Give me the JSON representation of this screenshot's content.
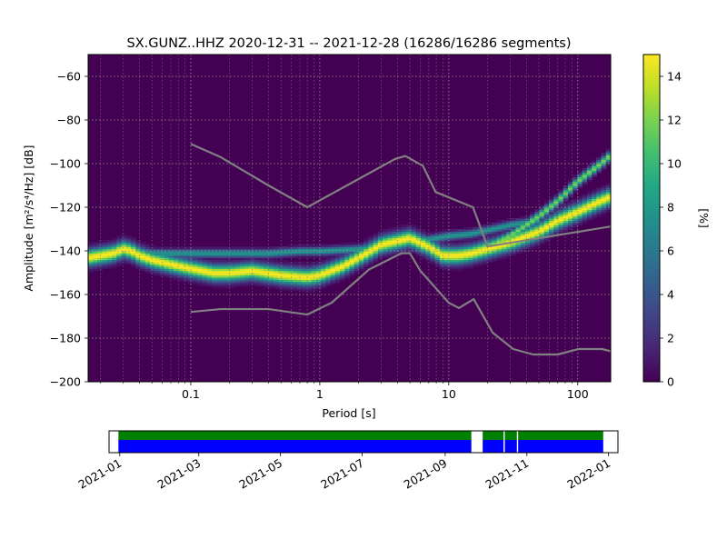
{
  "chart_data": [
    {
      "type": "heatmap",
      "title": "SX.GUNZ..HHZ   2020-12-31 -- 2021-12-28  (16286/16286 segments)",
      "xlabel": "Period [s]",
      "ylabel": "Amplitude [m²/s⁴/Hz] [dB]",
      "xscale": "log",
      "xlim": [
        0.016,
        180
      ],
      "ylim": [
        -200,
        -50
      ],
      "x_ticks": [
        0.1,
        1,
        10,
        100
      ],
      "x_tick_labels": [
        "0.1",
        "1",
        "10",
        "100"
      ],
      "y_ticks": [
        -200,
        -180,
        -160,
        -140,
        -120,
        -100,
        -80,
        -60
      ],
      "y_tick_labels": [
        "−200",
        "−180",
        "−160",
        "−140",
        "−120",
        "−100",
        "−80",
        "−60"
      ],
      "grid": true,
      "colormap": "viridis",
      "colorbar": {
        "label": "[%]",
        "range": [
          0,
          15
        ],
        "ticks": [
          0,
          2,
          4,
          6,
          8,
          10,
          12,
          14
        ],
        "tick_labels": [
          "0",
          "2",
          "4",
          "6",
          "8",
          "10",
          "12",
          "14"
        ]
      },
      "density_ridges": [
        {
          "points": [
            [
              0.016,
              -143
            ],
            [
              0.02,
              -142
            ],
            [
              0.025,
              -141
            ],
            [
              0.03,
              -139
            ],
            [
              0.035,
              -140
            ],
            [
              0.04,
              -142
            ],
            [
              0.05,
              -144
            ],
            [
              0.07,
              -146
            ],
            [
              0.1,
              -148
            ],
            [
              0.15,
              -150
            ],
            [
              0.2,
              -150
            ],
            [
              0.3,
              -149
            ],
            [
              0.5,
              -151
            ],
            [
              0.8,
              -152
            ],
            [
              1.0,
              -151
            ],
            [
              1.5,
              -147
            ],
            [
              2.0,
              -143
            ],
            [
              3.0,
              -137
            ],
            [
              5.0,
              -134
            ],
            [
              7.0,
              -138
            ],
            [
              9.0,
              -142
            ],
            [
              12.0,
              -142
            ],
            [
              15.0,
              -141
            ],
            [
              20.0,
              -139
            ],
            [
              30.0,
              -136
            ],
            [
              50.0,
              -131
            ],
            [
              70.0,
              -126
            ],
            [
              100.0,
              -122
            ],
            [
              150.0,
              -117
            ],
            [
              180.0,
              -115
            ]
          ],
          "spread_db": 2.5,
          "peak_percent": 15
        },
        {
          "points": [
            [
              0.03,
              -140
            ],
            [
              0.05,
              -141
            ],
            [
              0.1,
              -141
            ],
            [
              0.2,
              -141
            ],
            [
              0.4,
              -141
            ],
            [
              0.7,
              -140
            ],
            [
              1.0,
              -140
            ],
            [
              2.0,
              -139
            ],
            [
              5.0,
              -136
            ],
            [
              10.0,
              -133
            ],
            [
              15.0,
              -132
            ],
            [
              30.0,
              -128
            ],
            [
              50.0,
              -126
            ]
          ],
          "spread_db": 1.2,
          "peak_percent": 8
        },
        {
          "points": [
            [
              20.0,
              -138
            ],
            [
              30.0,
              -133
            ],
            [
              50.0,
              -124
            ],
            [
              70.0,
              -117
            ],
            [
              100.0,
              -108
            ],
            [
              150.0,
              -100
            ],
            [
              180.0,
              -96
            ]
          ],
          "spread_db": 1.5,
          "peak_percent": 12
        }
      ],
      "reference_curves": [
        {
          "points": [
            [
              0.1,
              -91
            ],
            [
              0.17,
              -97
            ],
            [
              0.4,
              -110
            ],
            [
              0.8,
              -120
            ],
            [
              3.8,
              -98
            ],
            [
              4.6,
              -96.5
            ],
            [
              6.3,
              -101
            ],
            [
              7.9,
              -113
            ],
            [
              15.4,
              -120
            ],
            [
              20.0,
              -138
            ],
            [
              354.8,
              -126
            ]
          ]
        },
        {
          "points": [
            [
              0.1,
              -168
            ],
            [
              0.17,
              -166.7
            ],
            [
              0.4,
              -166.7
            ],
            [
              0.8,
              -169.2
            ],
            [
              1.24,
              -163.7
            ],
            [
              2.4,
              -148.6
            ],
            [
              4.3,
              -141.1
            ],
            [
              5.0,
              -141.1
            ],
            [
              6.0,
              -149.0
            ],
            [
              10.0,
              -163.8
            ],
            [
              12.0,
              -166.2
            ],
            [
              15.6,
              -162.1
            ],
            [
              21.9,
              -177.5
            ],
            [
              31.6,
              -185.0
            ],
            [
              45.0,
              -187.5
            ],
            [
              70.0,
              -187.5
            ],
            [
              101.0,
              -185.0
            ],
            [
              154.0,
              -185.0
            ],
            [
              180.0,
              -186.0
            ]
          ]
        }
      ]
    },
    {
      "type": "timeline",
      "x_tick_labels": [
        "2021-01",
        "2021-03",
        "2021-05",
        "2021-07",
        "2021-09",
        "2021-11",
        "2022-01"
      ],
      "x_ticks": [
        "2021-01-01",
        "2021-03-01",
        "2021-05-01",
        "2021-07-01",
        "2021-09-01",
        "2021-11-01",
        "2022-01-01"
      ],
      "xlim": [
        "2020-12-24",
        "2022-01-08"
      ],
      "green_intervals": [
        [
          "2020-12-31",
          "2021-09-21"
        ],
        [
          "2021-09-29",
          "2021-12-28"
        ]
      ],
      "blue_intervals": [
        [
          "2020-12-31",
          "2021-09-21"
        ],
        [
          "2021-09-29",
          "2021-10-15"
        ],
        [
          "2021-10-15",
          "2021-10-25"
        ],
        [
          "2021-10-25",
          "2021-12-28"
        ]
      ],
      "gaps": [
        "2021-09-21",
        "2021-10-15",
        "2021-10-25"
      ]
    }
  ]
}
